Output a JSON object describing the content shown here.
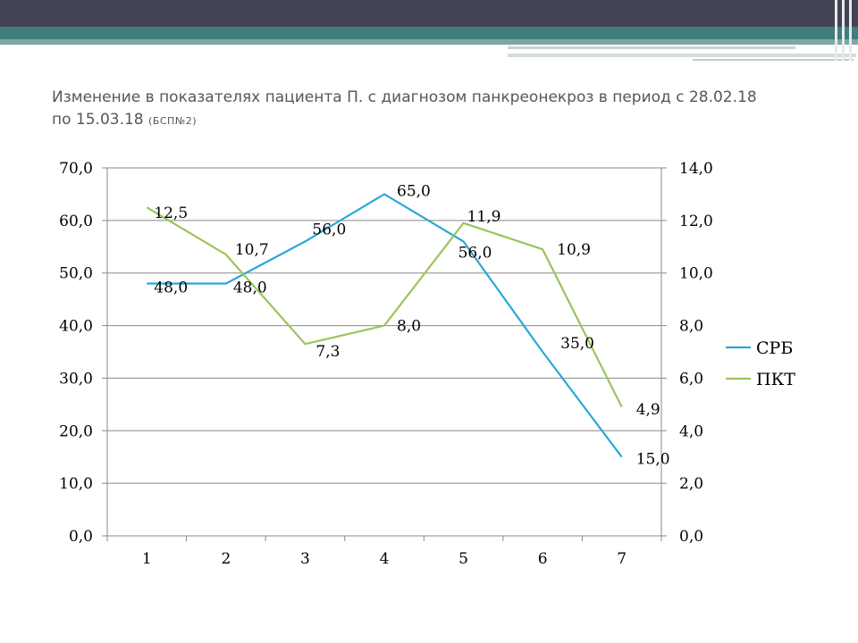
{
  "slide": {
    "title_main": "Изменение в показателях пациента П. с диагнозом панкреонекроз в период с 28.02.18 по 15.03.18",
    "title_sub": "(БСП№2)"
  },
  "colors": {
    "topbar": "#434453",
    "band": "#3f7d7c",
    "srb": "#2aa8d6",
    "pkt": "#9bc55a"
  },
  "chart_data": {
    "type": "line",
    "title": "",
    "xlabel": "",
    "ylabel": "",
    "categories": [
      "1",
      "2",
      "3",
      "4",
      "5",
      "6",
      "7"
    ],
    "series": [
      {
        "name": "СРБ",
        "axis": "left",
        "values": [
          48.0,
          48.0,
          56.0,
          65.0,
          56.0,
          35.0,
          15.0
        ],
        "labels": [
          "48,0",
          "48,0",
          "56,0",
          "65,0",
          "56,0",
          "35,0",
          "15,0"
        ]
      },
      {
        "name": "ПКТ",
        "axis": "right",
        "values": [
          12.5,
          10.7,
          7.3,
          8.0,
          11.9,
          10.9,
          4.9
        ],
        "labels": [
          "12,5",
          "10,7",
          "7,3",
          "8,0",
          "11,9",
          "10,9",
          "4,9"
        ]
      }
    ],
    "ylim_left": [
      0,
      70
    ],
    "ylim_right": [
      0,
      14
    ],
    "left_ticks": [
      "0,0",
      "10,0",
      "20,0",
      "30,0",
      "40,0",
      "50,0",
      "60,0",
      "70,0"
    ],
    "right_ticks": [
      "0,0",
      "2,0",
      "4,0",
      "6,0",
      "8,0",
      "10,0",
      "12,0",
      "14,0"
    ],
    "grid": true,
    "legend_position": "right"
  }
}
